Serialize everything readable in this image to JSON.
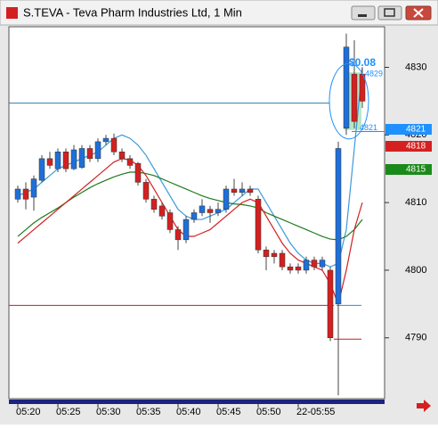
{
  "chart_data": {
    "type": "candlestick",
    "title": "S.TEVA - Teva Pharm Industries Ltd, 1 Min",
    "categories": [
      "05:20",
      null,
      null,
      null,
      null,
      "05:25",
      null,
      null,
      null,
      null,
      "05:30",
      null,
      null,
      null,
      null,
      "05:35",
      null,
      null,
      null,
      null,
      "05:40",
      null,
      null,
      null,
      null,
      "05:45",
      null,
      null,
      null,
      null,
      "05:50",
      null,
      null,
      null,
      null,
      "22-05:55",
      null,
      null,
      null,
      null,
      null,
      null,
      null,
      null
    ],
    "open": [
      4810.5,
      4812,
      4810.8,
      4813.3,
      4816.5,
      4815,
      4817.5,
      4815,
      4815.2,
      4818,
      4816.5,
      4819,
      4819.5,
      4817.5,
      4816.5,
      4815.8,
      4813,
      4810.5,
      4809.5,
      4808.5,
      4806,
      4804.5,
      4807.5,
      4808.5,
      4809,
      4808.5,
      4809,
      4812,
      4811.5,
      4812,
      4810.5,
      4803,
      4802.5,
      4802.5,
      4800.5,
      4800.5,
      4800,
      4801.5,
      4800.5,
      4800,
      4795,
      4821,
      4829,
      4829
    ],
    "high": [
      4812.5,
      4813,
      4814,
      4817,
      4817.5,
      4818,
      4818,
      4818.5,
      4818.5,
      4818.5,
      4819.5,
      4820,
      4820.2,
      4818,
      4817,
      4816,
      4813.5,
      4811,
      4810,
      4809,
      4806.5,
      4808,
      4809,
      4810.5,
      4809.5,
      4810,
      4812.5,
      4813.5,
      4813,
      4812.5,
      4811,
      4803.5,
      4803,
      4803,
      4801,
      4801,
      4802,
      4802,
      4802,
      4800.5,
      4819,
      4835,
      4834,
      4830
    ],
    "low": [
      4810,
      4809,
      4808.8,
      4813,
      4815,
      4814.5,
      4814.5,
      4814.8,
      4815,
      4816,
      4816,
      4818.5,
      4817,
      4816,
      4815,
      4812.5,
      4810,
      4808.5,
      4807.5,
      4805.5,
      4803,
      4804,
      4807,
      4808,
      4807,
      4808,
      4808.5,
      4811,
      4811,
      4811,
      4802.5,
      4800,
      4801,
      4800,
      4799.5,
      4799.5,
      4799.5,
      4800,
      4800,
      4789.5,
      4781.5,
      4820,
      4821,
      4824
    ],
    "close": [
      4812,
      4810.5,
      4813.5,
      4816.5,
      4815.5,
      4817.5,
      4815,
      4817.8,
      4818,
      4816.5,
      4819,
      4819.5,
      4817.5,
      4816.5,
      4815.5,
      4813,
      4810.5,
      4809,
      4808,
      4806,
      4804.5,
      4807.5,
      4808.5,
      4809.5,
      4808.5,
      4809,
      4812,
      4811.5,
      4812,
      4811.5,
      4803,
      4802,
      4802,
      4800.5,
      4800,
      4800,
      4801.5,
      4800.5,
      4801.5,
      4790,
      4818,
      4833,
      4822,
      4825
    ],
    "up_color": "#1e6fd9",
    "down_color": "#d42020",
    "lines": [
      {
        "color": "#3a9ad9",
        "values": [
          4811,
          4811.5,
          4812,
          4813,
          4814,
          4815,
          4815.5,
          4816,
          4816.5,
          4817,
          4817.5,
          4818.5,
          4819.5,
          4820,
          4819.5,
          4818.5,
          4817,
          4815,
          4813,
          4811,
          4809,
          4808,
          4807.5,
          4807.5,
          4808,
          4808.5,
          4809,
          4810,
          4811,
          4812,
          4812,
          4810,
          4808,
          4806,
          4804,
          4802.5,
          4801.5,
          4801,
          4801,
          4800.5,
          4801,
          4806,
          4818,
          4830
        ]
      },
      {
        "color": "#1e7a1e",
        "values": [
          4805,
          4806,
          4807,
          4807.8,
          4808.5,
          4809.2,
          4810,
          4810.8,
          4811.5,
          4812.2,
          4812.8,
          4813.3,
          4813.8,
          4814.2,
          4814.5,
          4814.5,
          4814.3,
          4814,
          4813.5,
          4813,
          4812.5,
          4812,
          4811.5,
          4811,
          4810.6,
          4810.3,
          4810,
          4809.8,
          4809.7,
          4809.5,
          4809.2,
          4808.5,
          4808,
          4807.5,
          4807,
          4806.5,
          4806,
          4805.5,
          4805,
          4804.6,
          4804.5,
          4805,
          4806,
          4807.5
        ]
      },
      {
        "color": "#d42020",
        "values": [
          4804,
          4805,
          4806,
          4807,
          4808,
          4809,
          4810,
          4811,
          4812,
          4813,
          4814,
          4815,
          4816,
          4816.5,
          4816.3,
          4815.5,
          4814,
          4812,
          4810,
          4808,
          4806,
          4805,
          4805,
          4805.5,
          4806,
          4807,
          4808,
          4809,
          4810,
          4810.5,
          4810,
          4808,
          4806,
          4804,
          4802.5,
          4801.5,
          4801,
          4800.5,
          4800,
          4798,
          4795,
          4800,
          4806,
          4810
        ]
      }
    ],
    "levels": [
      {
        "value": 4824.7,
        "color": "#2a7fa8"
      },
      {
        "value": 4794.8,
        "color": "#c02020"
      },
      {
        "value": 4794.8,
        "color": "#1e90ff"
      },
      {
        "value": 4789.8,
        "color": "#c02020"
      },
      {
        "value": 4820.5,
        "color": "#1e90ff"
      }
    ],
    "annotations": {
      "change": "$0.08",
      "high": 4829,
      "low": 4821
    },
    "price_tags": [
      {
        "value": 4821,
        "color": "#1e90ff"
      },
      {
        "value": 4818,
        "color": "#d42020"
      },
      {
        "value": 4815,
        "color": "#1a8a1a"
      }
    ],
    "ylim": [
      4781,
      4836
    ],
    "yticks": [
      4790,
      4800,
      4810,
      4820,
      4830
    ]
  }
}
